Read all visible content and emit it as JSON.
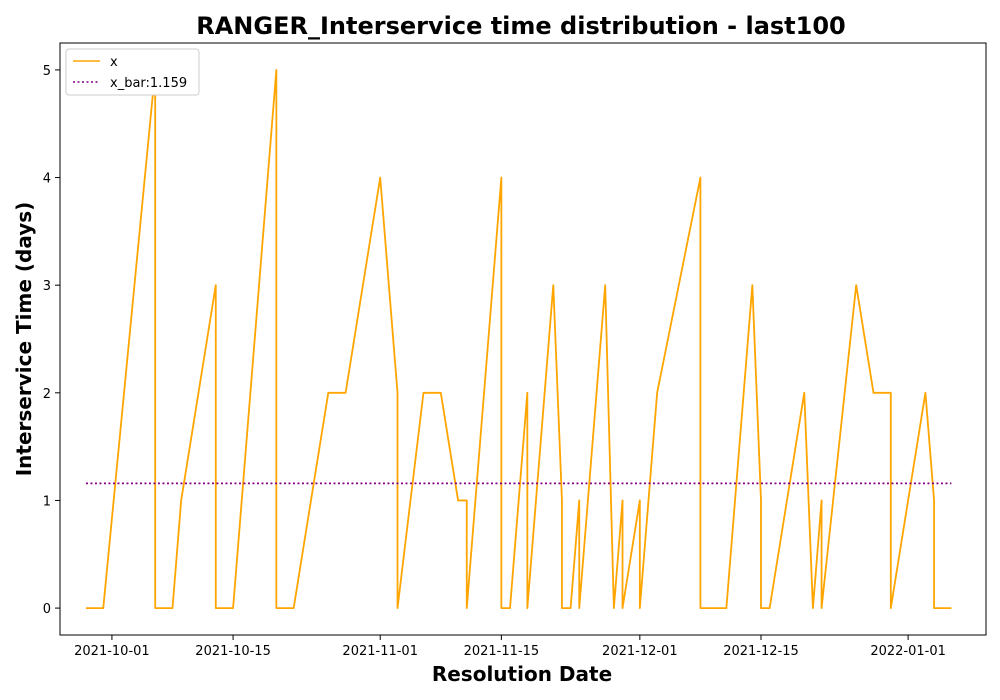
{
  "chart_data": {
    "type": "line",
    "title": "RANGER_Interservice time distribution - last100",
    "xlabel": "Resolution Date",
    "ylabel": "Interservice Time (days)",
    "x_type": "date",
    "xlim": [
      "2021-09-25",
      "2022-01-10"
    ],
    "ylim": [
      -0.25,
      5.25
    ],
    "x_ticks": [
      "2021-10-01",
      "2021-10-15",
      "2021-11-01",
      "2021-11-15",
      "2021-12-01",
      "2021-12-15",
      "2022-01-01"
    ],
    "y_ticks": [
      0,
      1,
      2,
      3,
      4,
      5
    ],
    "grid": false,
    "legend": "upper-left",
    "series": [
      {
        "name": "x",
        "style": "solid",
        "color": "#ffa500",
        "points": [
          [
            "2021-09-28",
            0
          ],
          [
            "2021-09-30",
            0
          ],
          [
            "2021-10-06",
            5
          ],
          [
            "2021-10-06",
            0
          ],
          [
            "2021-10-08",
            0
          ],
          [
            "2021-10-09",
            1
          ],
          [
            "2021-10-13",
            3
          ],
          [
            "2021-10-13",
            0
          ],
          [
            "2021-10-15",
            0
          ],
          [
            "2021-10-20",
            5
          ],
          [
            "2021-10-20",
            0
          ],
          [
            "2021-10-22",
            0
          ],
          [
            "2021-10-24",
            1
          ],
          [
            "2021-10-26",
            2
          ],
          [
            "2021-10-28",
            2
          ],
          [
            "2021-11-01",
            4
          ],
          [
            "2021-11-03",
            2
          ],
          [
            "2021-11-03",
            0
          ],
          [
            "2021-11-06",
            2
          ],
          [
            "2021-11-08",
            2
          ],
          [
            "2021-11-10",
            1
          ],
          [
            "2021-11-11",
            1
          ],
          [
            "2021-11-11",
            0
          ],
          [
            "2021-11-15",
            4
          ],
          [
            "2021-11-15",
            0
          ],
          [
            "2021-11-16",
            0
          ],
          [
            "2021-11-18",
            2
          ],
          [
            "2021-11-18",
            0
          ],
          [
            "2021-11-21",
            3
          ],
          [
            "2021-11-22",
            1
          ],
          [
            "2021-11-22",
            0
          ],
          [
            "2021-11-23",
            0
          ],
          [
            "2021-11-24",
            1
          ],
          [
            "2021-11-24",
            0
          ],
          [
            "2021-11-27",
            3
          ],
          [
            "2021-11-28",
            0
          ],
          [
            "2021-11-28",
            0
          ],
          [
            "2021-11-29",
            1
          ],
          [
            "2021-11-29",
            0
          ],
          [
            "2021-12-01",
            1
          ],
          [
            "2021-12-01",
            0
          ],
          [
            "2021-12-03",
            2
          ],
          [
            "2021-12-08",
            4
          ],
          [
            "2021-12-08",
            0
          ],
          [
            "2021-12-10",
            0
          ],
          [
            "2021-12-11",
            0
          ],
          [
            "2021-12-14",
            3
          ],
          [
            "2021-12-15",
            1
          ],
          [
            "2021-12-15",
            0
          ],
          [
            "2021-12-16",
            0
          ],
          [
            "2021-12-18",
            1
          ],
          [
            "2021-12-20",
            2
          ],
          [
            "2021-12-21",
            0
          ],
          [
            "2021-12-22",
            1
          ],
          [
            "2021-12-22",
            0
          ],
          [
            "2021-12-26",
            3
          ],
          [
            "2021-12-28",
            2
          ],
          [
            "2021-12-30",
            2
          ],
          [
            "2021-12-30",
            0
          ],
          [
            "2022-01-03",
            2
          ],
          [
            "2022-01-04",
            1
          ],
          [
            "2022-01-04",
            0
          ],
          [
            "2022-01-06",
            0
          ]
        ]
      },
      {
        "name": "x_bar:1.159",
        "style": "dotted",
        "color": "#800080",
        "points": [
          [
            "2021-09-28",
            1.159
          ],
          [
            "2022-01-06",
            1.159
          ]
        ]
      }
    ]
  }
}
